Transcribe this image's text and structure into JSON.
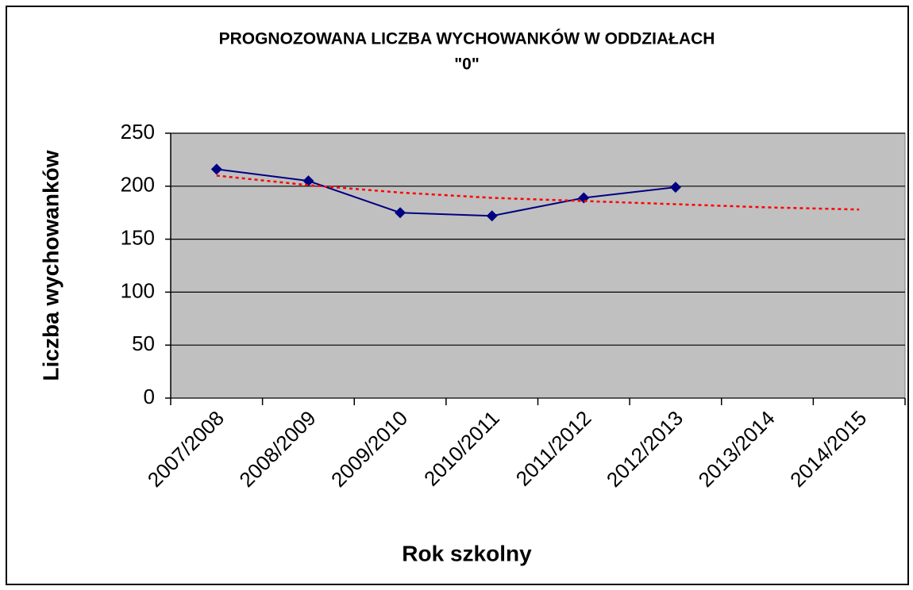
{
  "chart_data": {
    "type": "line",
    "title": [
      "PROGNOZOWANA LICZBA WYCHOWANKÓW W ODDZIAŁACH",
      "\"0\""
    ],
    "x_label": "Rok szkolny",
    "y_label": "Liczba wychowanków",
    "categories": [
      "2007/2008",
      "2008/2009",
      "2009/2010",
      "2010/2011",
      "2011/2012",
      "2012/2013",
      "2013/2014",
      "2014/2015"
    ],
    "series": [
      {
        "color": "#000080",
        "marker": "diamond",
        "dash": "solid",
        "values": [
          216,
          205,
          175,
          172,
          189,
          199,
          null,
          null
        ]
      },
      {
        "color": "#ff0000",
        "marker": "none",
        "dash": "dotted",
        "values": [
          210,
          201,
          194,
          189,
          186,
          183,
          180,
          178
        ]
      }
    ],
    "ylim": [
      0,
      250
    ],
    "yticks": [
      0,
      50,
      100,
      150,
      200,
      250
    ],
    "grid": true,
    "background": "#c0c0c0"
  }
}
